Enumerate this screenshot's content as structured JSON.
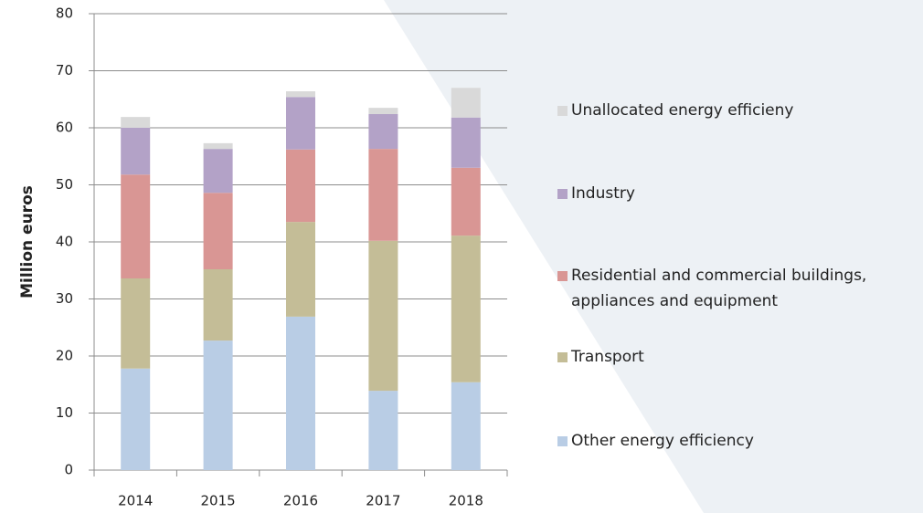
{
  "chart_data": {
    "type": "stacked_bar",
    "y_label": "Million euros",
    "categories": [
      "2014",
      "2015",
      "2016",
      "2017",
      "2018"
    ],
    "series": [
      {
        "name": "Other energy efficiency",
        "color": "#b9cde5",
        "values": [
          17.8,
          22.7,
          26.9,
          13.9,
          15.4
        ]
      },
      {
        "name": "Transport",
        "color": "#c4bd97",
        "values": [
          15.8,
          12.5,
          16.6,
          26.3,
          25.7
        ]
      },
      {
        "name": "Residential and commercial buildings, appliances and equipment",
        "color": "#d99694",
        "values": [
          18.2,
          13.4,
          12.7,
          16.1,
          11.9
        ]
      },
      {
        "name": "Industry",
        "color": "#b3a2c7",
        "values": [
          8.2,
          7.7,
          9.2,
          6.1,
          8.8
        ]
      },
      {
        "name": "Unallocated energy efficieny",
        "color": "#d9d9d9",
        "values": [
          1.9,
          1.0,
          1.0,
          1.1,
          5.2
        ]
      }
    ],
    "ylim": [
      0,
      80
    ],
    "yticks": [
      0,
      10,
      20,
      30,
      40,
      50,
      60,
      70,
      80
    ],
    "grid": true
  }
}
